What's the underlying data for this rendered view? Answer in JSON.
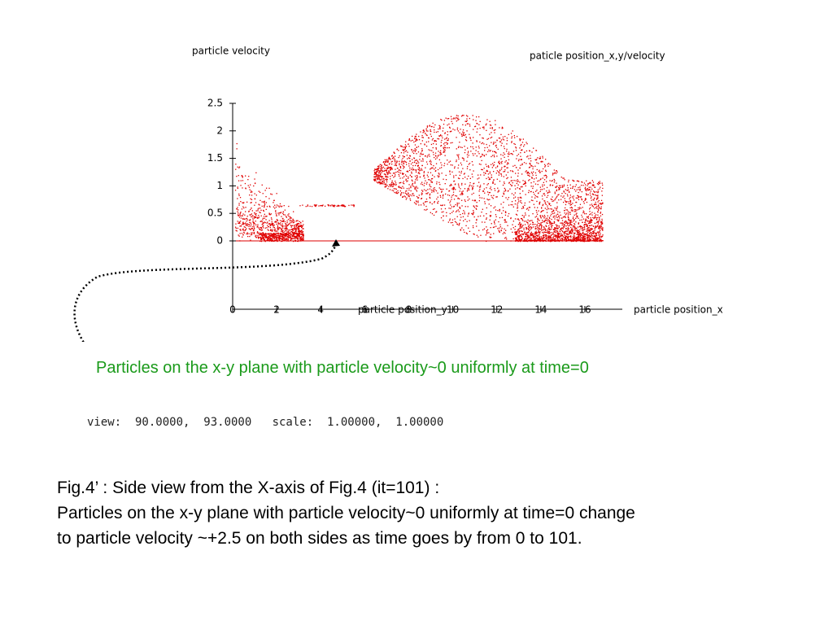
{
  "plot": {
    "title_left": "particle velocity",
    "title_right": "paticle position_x,y/velocity",
    "y_ticks": [
      "0",
      "0.5",
      "1",
      "1.5",
      "2",
      "2.5"
    ],
    "x_ticks": [
      "0",
      "2",
      "4",
      "6",
      "8",
      "10",
      "12",
      "14",
      "16"
    ],
    "x_label_y": "particle position_y",
    "x_label_x": "particle position_x"
  },
  "annotation": "Particles on the x-y plane with particle velocity~0 uniformly at time=0",
  "view_line": "view:  90.0000,  93.0000   scale:  1.00000,  1.00000",
  "caption": {
    "title": "Fig.4’ : Side view from the X-axis of Fig.4 (it=101) :",
    "line1": "Particles on the x-y plane with particle velocity~0 uniformly at time=0 change",
    "line2": "to particle velocity ~+2.5 on both sides as  time goes by from 0 to 101."
  }
}
